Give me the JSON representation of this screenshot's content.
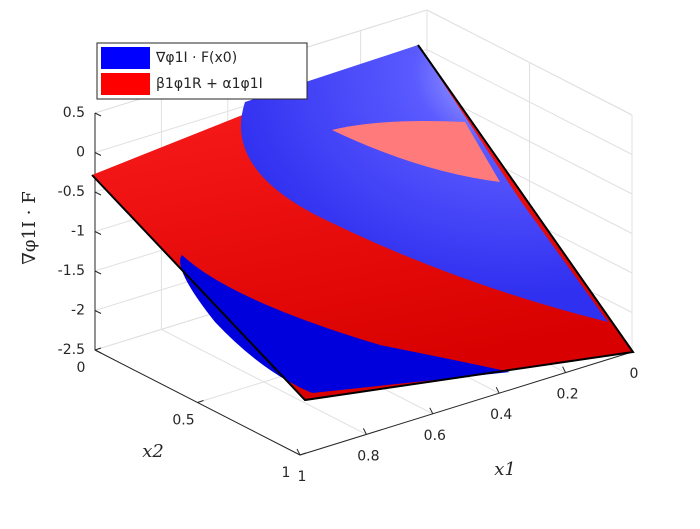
{
  "chart_data": {
    "type": "surface",
    "xlabel": "x1",
    "ylabel": "x2",
    "zlabel": "∇φ1I · F",
    "xlim": [
      0,
      1
    ],
    "ylim": [
      0,
      1
    ],
    "zlim": [
      -2.5,
      0.5
    ],
    "xticks": [
      0,
      0.2,
      0.4,
      0.6,
      0.8,
      1
    ],
    "yticks": [
      0,
      0.5,
      1
    ],
    "zticks": [
      -2.5,
      -2,
      -1.5,
      -1,
      -0.5,
      0,
      0.5
    ],
    "grid": true,
    "legend": "upper left",
    "series": [
      {
        "name": "∇φ1I · F(x0)",
        "color": "#0000ff"
      },
      {
        "name": "β1φ1R + α1φ1I",
        "color": "#ff0000"
      }
    ]
  }
}
